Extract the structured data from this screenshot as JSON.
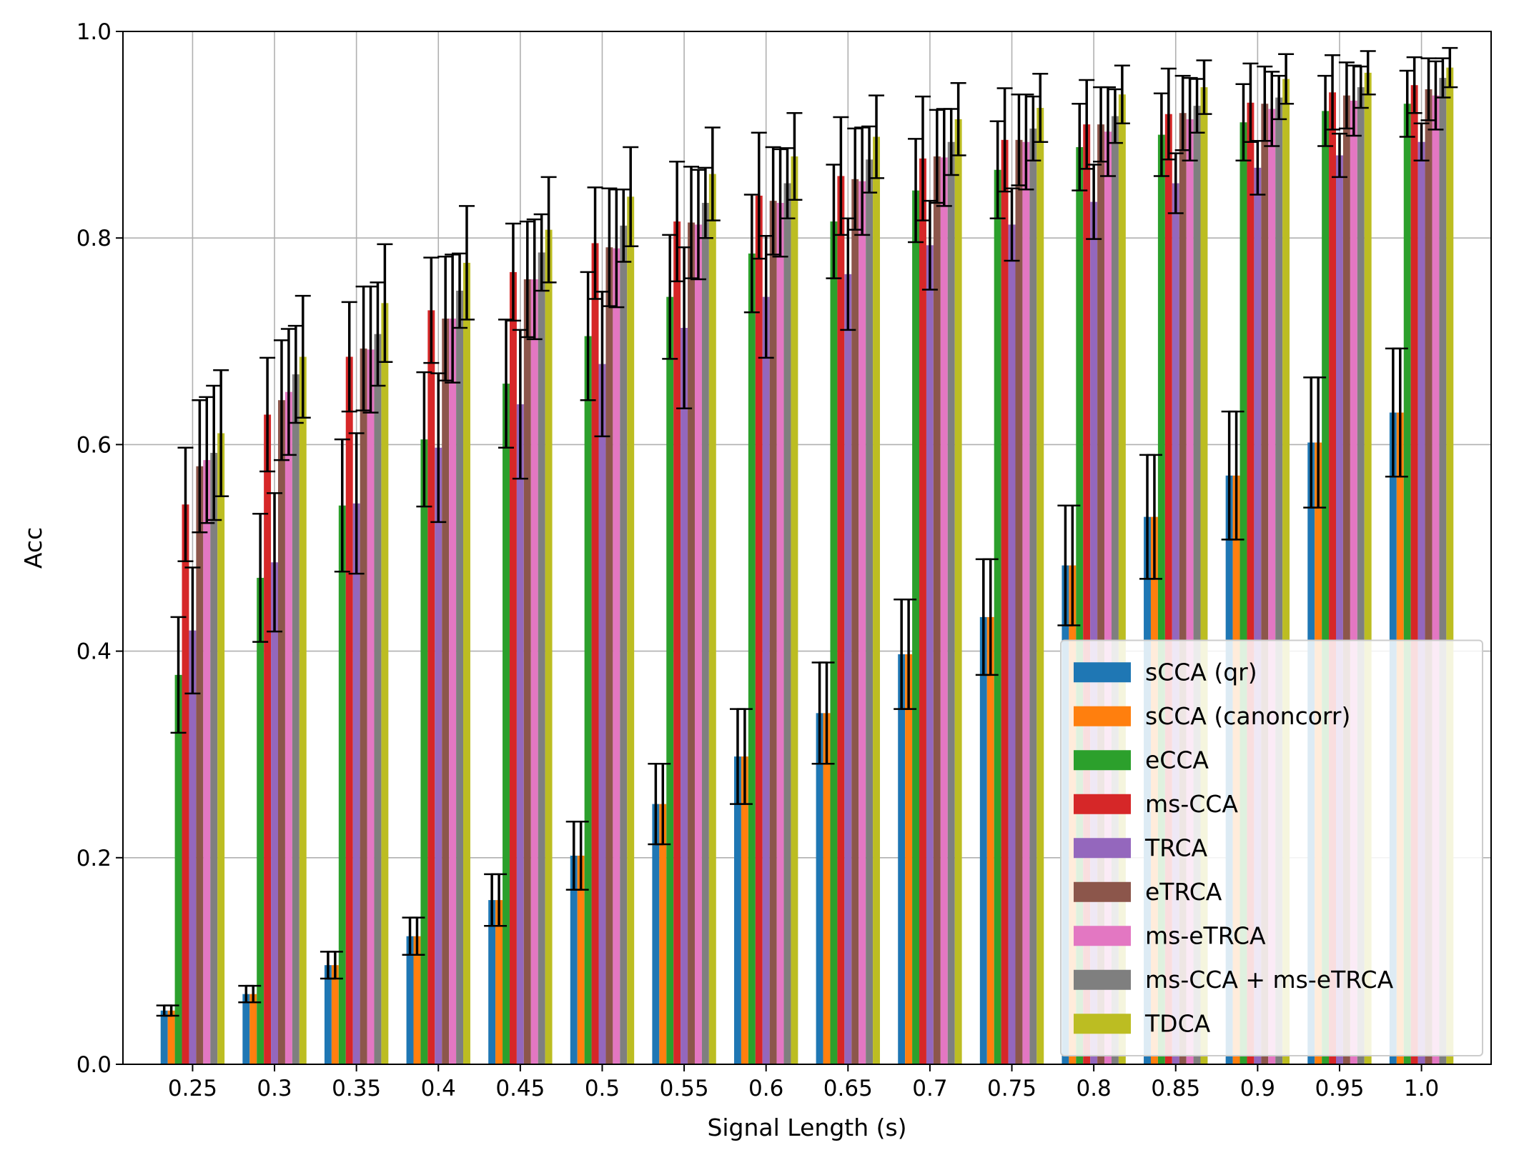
{
  "chart_data": {
    "type": "bar",
    "title": "",
    "xlabel": "Signal Length (s)",
    "ylabel": "Acc",
    "ylim": [
      0,
      1.0
    ],
    "yticks": [
      "0.0",
      "0.2",
      "0.4",
      "0.6",
      "0.8",
      "1.0"
    ],
    "grid": true,
    "legend_position": "lower-right",
    "error_bars": true,
    "categories": [
      "0.25",
      "0.3",
      "0.35",
      "0.4",
      "0.45",
      "0.5",
      "0.55",
      "0.6",
      "0.65",
      "0.7",
      "0.75",
      "0.8",
      "0.85",
      "0.9",
      "0.95",
      "1.0"
    ],
    "series": [
      {
        "name": "sCCA (qr)",
        "color": "#1f77b4",
        "values": [
          0.052,
          0.068,
          0.096,
          0.124,
          0.159,
          0.202,
          0.252,
          0.298,
          0.34,
          0.397,
          0.433,
          0.483,
          0.53,
          0.57,
          0.602,
          0.631
        ],
        "errors": [
          0.005,
          0.008,
          0.013,
          0.018,
          0.025,
          0.033,
          0.039,
          0.046,
          0.049,
          0.053,
          0.056,
          0.058,
          0.06,
          0.062,
          0.063,
          0.062
        ]
      },
      {
        "name": "sCCA (canoncorr)",
        "color": "#ff7f0e",
        "values": [
          0.052,
          0.068,
          0.096,
          0.124,
          0.159,
          0.202,
          0.252,
          0.298,
          0.34,
          0.397,
          0.433,
          0.483,
          0.53,
          0.57,
          0.602,
          0.631
        ],
        "errors": [
          0.005,
          0.008,
          0.013,
          0.018,
          0.025,
          0.033,
          0.039,
          0.046,
          0.049,
          0.053,
          0.056,
          0.058,
          0.06,
          0.062,
          0.063,
          0.062
        ]
      },
      {
        "name": "eCCA",
        "color": "#2ca02c",
        "values": [
          0.377,
          0.471,
          0.541,
          0.605,
          0.659,
          0.705,
          0.743,
          0.785,
          0.816,
          0.846,
          0.866,
          0.888,
          0.9,
          0.912,
          0.923,
          0.93
        ],
        "errors": [
          0.056,
          0.062,
          0.064,
          0.065,
          0.062,
          0.062,
          0.06,
          0.057,
          0.055,
          0.05,
          0.047,
          0.042,
          0.04,
          0.037,
          0.034,
          0.032
        ]
      },
      {
        "name": "ms-CCA",
        "color": "#d62728",
        "values": [
          0.542,
          0.629,
          0.685,
          0.73,
          0.767,
          0.795,
          0.816,
          0.841,
          0.86,
          0.877,
          0.895,
          0.91,
          0.92,
          0.931,
          0.941,
          0.948
        ],
        "errors": [
          0.055,
          0.055,
          0.053,
          0.051,
          0.047,
          0.054,
          0.058,
          0.061,
          0.057,
          0.06,
          0.05,
          0.043,
          0.044,
          0.038,
          0.036,
          0.027
        ]
      },
      {
        "name": "TRCA",
        "color": "#9467bd",
        "values": [
          0.42,
          0.486,
          0.543,
          0.597,
          0.639,
          0.678,
          0.713,
          0.743,
          0.765,
          0.793,
          0.813,
          0.835,
          0.853,
          0.868,
          0.88,
          0.893
        ],
        "errors": [
          0.061,
          0.067,
          0.068,
          0.072,
          0.072,
          0.07,
          0.078,
          0.059,
          0.054,
          0.043,
          0.035,
          0.036,
          0.029,
          0.026,
          0.021,
          0.018
        ]
      },
      {
        "name": "eTRCA",
        "color": "#8c564b",
        "values": [
          0.579,
          0.643,
          0.693,
          0.722,
          0.76,
          0.791,
          0.815,
          0.836,
          0.857,
          0.879,
          0.895,
          0.91,
          0.921,
          0.93,
          0.938,
          0.944
        ],
        "errors": [
          0.064,
          0.058,
          0.06,
          0.06,
          0.056,
          0.057,
          0.054,
          0.052,
          0.049,
          0.045,
          0.044,
          0.036,
          0.036,
          0.036,
          0.032,
          0.03
        ]
      },
      {
        "name": "ms-eTRCA",
        "color": "#e377c2",
        "values": [
          0.585,
          0.651,
          0.692,
          0.722,
          0.76,
          0.79,
          0.813,
          0.834,
          0.855,
          0.878,
          0.893,
          0.903,
          0.915,
          0.925,
          0.933,
          0.938
        ],
        "errors": [
          0.061,
          0.061,
          0.061,
          0.062,
          0.058,
          0.057,
          0.053,
          0.052,
          0.052,
          0.047,
          0.046,
          0.043,
          0.04,
          0.036,
          0.034,
          0.033
        ]
      },
      {
        "name": "ms-CCA + ms-eTRCA",
        "color": "#7f7f7f",
        "values": [
          0.592,
          0.668,
          0.707,
          0.749,
          0.786,
          0.812,
          0.834,
          0.853,
          0.876,
          0.893,
          0.906,
          0.918,
          0.928,
          0.936,
          0.946,
          0.955
        ],
        "errors": [
          0.065,
          0.047,
          0.05,
          0.036,
          0.037,
          0.035,
          0.034,
          0.034,
          0.032,
          0.032,
          0.031,
          0.026,
          0.026,
          0.021,
          0.02,
          0.019
        ]
      },
      {
        "name": "TDCA",
        "color": "#bcbd22",
        "values": [
          0.611,
          0.685,
          0.737,
          0.776,
          0.808,
          0.84,
          0.862,
          0.879,
          0.898,
          0.915,
          0.926,
          0.939,
          0.946,
          0.954,
          0.96,
          0.965
        ],
        "errors": [
          0.061,
          0.059,
          0.057,
          0.055,
          0.051,
          0.048,
          0.045,
          0.042,
          0.04,
          0.035,
          0.033,
          0.028,
          0.026,
          0.024,
          0.021,
          0.019
        ]
      }
    ]
  }
}
